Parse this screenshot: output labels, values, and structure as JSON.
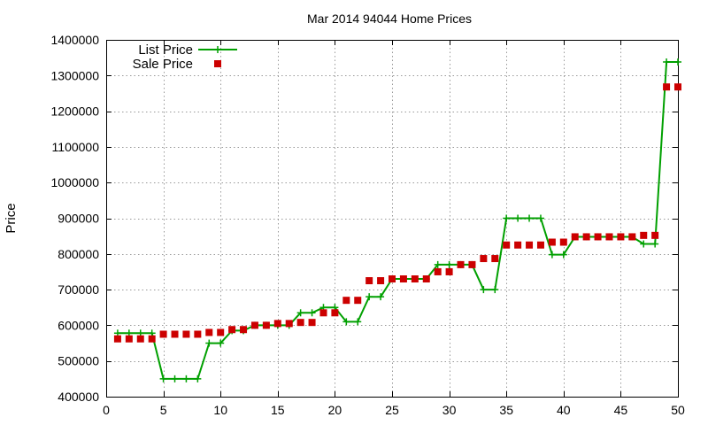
{
  "chart_data": {
    "type": "line",
    "title": "Mar 2014 94044 Home Prices",
    "xlabel": "",
    "ylabel": "Price",
    "xlim": [
      0,
      50
    ],
    "ylim": [
      400000,
      1400000
    ],
    "x_ticks": [
      "0",
      "5",
      "10",
      "15",
      "20",
      "25",
      "30",
      "35",
      "40",
      "45",
      "50"
    ],
    "y_ticks": [
      "400000",
      "500000",
      "600000",
      "700000",
      "800000",
      "900000",
      "1000000",
      "1100000",
      "1200000",
      "1300000",
      "1400000"
    ],
    "grid": true,
    "legend_position": "top-left",
    "x": [
      1,
      2,
      3,
      4,
      5,
      6,
      7,
      8,
      9,
      10,
      11,
      12,
      13,
      14,
      15,
      16,
      17,
      18,
      19,
      20,
      21,
      22,
      23,
      24,
      25,
      26,
      27,
      28,
      29,
      30,
      31,
      32,
      33,
      34,
      35,
      36,
      37,
      38,
      39,
      40,
      41,
      42,
      43,
      44,
      45,
      46,
      47,
      48,
      49,
      50
    ],
    "series": [
      {
        "name": "List Price",
        "style": "lines+crosses",
        "color": "#00a000",
        "values": [
          578000,
          578000,
          578000,
          578000,
          450000,
          450000,
          450000,
          450000,
          550000,
          550000,
          585000,
          585000,
          600000,
          600000,
          600000,
          600000,
          635000,
          635000,
          650000,
          650000,
          610000,
          610000,
          680000,
          680000,
          730000,
          730000,
          730000,
          730000,
          770000,
          770000,
          770000,
          770000,
          700000,
          700000,
          900000,
          900000,
          900000,
          900000,
          798000,
          798000,
          848000,
          848000,
          848000,
          848000,
          848000,
          848000,
          828000,
          828000,
          1338000,
          1338000
        ]
      },
      {
        "name": "Sale Price",
        "style": "squares",
        "color": "#cc0000",
        "values": [
          562000,
          562000,
          562000,
          562000,
          575000,
          575000,
          575000,
          575000,
          580000,
          580000,
          588000,
          588000,
          600000,
          600000,
          605000,
          605000,
          608000,
          608000,
          635000,
          635000,
          670000,
          670000,
          725000,
          725000,
          730000,
          730000,
          730000,
          730000,
          750000,
          750000,
          770000,
          770000,
          787000,
          787000,
          825000,
          825000,
          825000,
          825000,
          833000,
          833000,
          848000,
          848000,
          848000,
          848000,
          848000,
          848000,
          852000,
          852000,
          1268000,
          1268000
        ]
      }
    ]
  }
}
